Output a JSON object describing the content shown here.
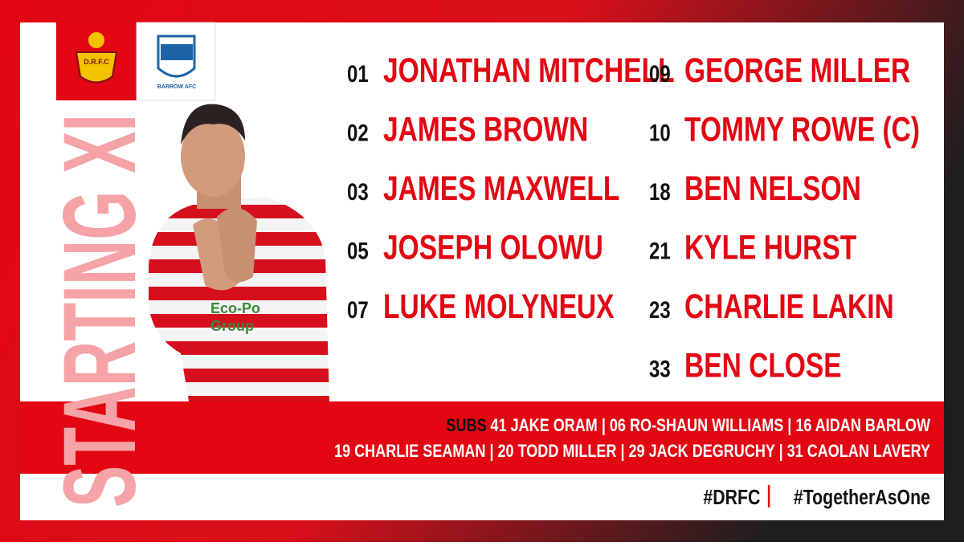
{
  "title": "STARTING XI",
  "badges": {
    "home": "D.R.F.C",
    "away": "BARROW AFC"
  },
  "players": {
    "left": [
      {
        "number": "01",
        "name": "JONATHAN MITCHELL"
      },
      {
        "number": "02",
        "name": "JAMES BROWN"
      },
      {
        "number": "03",
        "name": "JAMES MAXWELL"
      },
      {
        "number": "05",
        "name": "JOSEPH OLOWU"
      },
      {
        "number": "07",
        "name": "LUKE MOLYNEUX"
      }
    ],
    "right": [
      {
        "number": "09",
        "name": "GEORGE MILLER"
      },
      {
        "number": "10",
        "name": "TOMMY ROWE (C)"
      },
      {
        "number": "18",
        "name": "BEN NELSON"
      },
      {
        "number": "21",
        "name": "KYLE HURST"
      },
      {
        "number": "23",
        "name": "CHARLIE LAKIN"
      },
      {
        "number": "33",
        "name": "BEN CLOSE"
      }
    ]
  },
  "subs": {
    "label": "SUBS",
    "lines": [
      "41 JAKE ORAM | 06 RO-SHAUN WILLIAMS | 16 AIDAN BARLOW",
      "19 CHARLIE SEAMAN | 20 TODD MILLER | 29 JACK DEGRUCHY | 31 CAOLAN LAVERY"
    ]
  },
  "hashtags": [
    "#DRFC",
    "#TogetherAsOne"
  ],
  "shirt_sponsor": [
    "Eco-Po",
    "Group"
  ]
}
